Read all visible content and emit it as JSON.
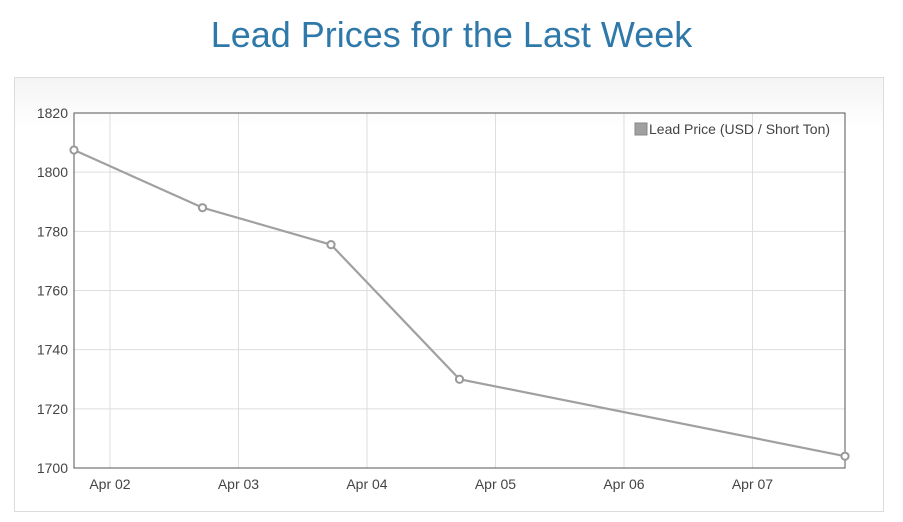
{
  "page": {
    "title": "Lead Prices for the Last Week"
  },
  "colors": {
    "title": "#2f78aa",
    "series_line": "#a0a0a0",
    "grid": "#dddddd",
    "axis": "#555555",
    "text": "#444444"
  },
  "chart_data": {
    "type": "line",
    "title": "",
    "xlabel": "",
    "ylabel": "",
    "x_tick_labels": [
      "Apr 02",
      "Apr 03",
      "Apr 04",
      "Apr 05",
      "Apr 06",
      "Apr 07"
    ],
    "x_tick_days": [
      2,
      3,
      4,
      5,
      6,
      7
    ],
    "xlim": [
      1.72,
      7.72
    ],
    "ylim": [
      1700,
      1820
    ],
    "y_ticks": [
      1700,
      1720,
      1740,
      1760,
      1780,
      1800,
      1820
    ],
    "grid": true,
    "legend_position": "top-right",
    "series": [
      {
        "name": "Lead Price (USD / Short Ton)",
        "x": [
          1.72,
          2.72,
          3.72,
          4.72,
          7.72
        ],
        "y": [
          1807.5,
          1788,
          1775.5,
          1730,
          1704
        ]
      }
    ]
  }
}
